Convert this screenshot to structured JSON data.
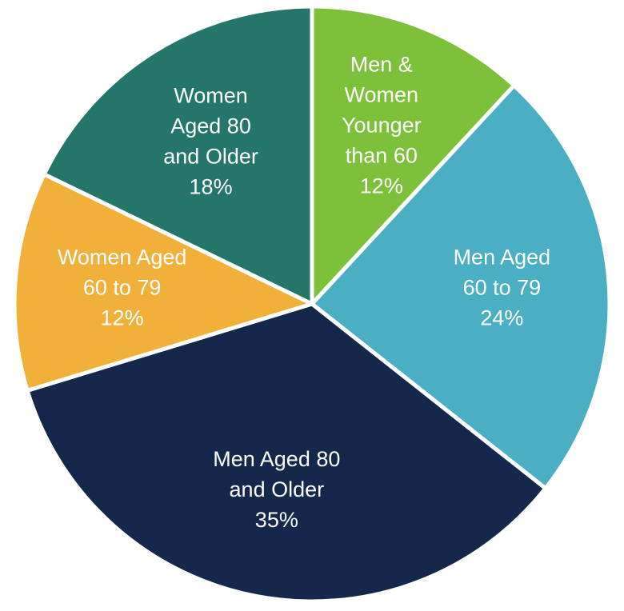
{
  "chart_data": {
    "type": "pie",
    "categories": [
      [
        "Men &",
        "Women",
        "Younger",
        "than 60"
      ],
      [
        "Men Aged",
        "60 to 79"
      ],
      [
        "Men Aged 80",
        "and Older"
      ],
      [
        "Women Aged",
        "60 to 79"
      ],
      [
        "Women",
        "Aged 80",
        "and Older"
      ]
    ],
    "values": [
      12,
      24,
      35,
      12,
      18
    ],
    "value_labels": [
      "12%",
      "24%",
      "35%",
      "12%",
      "18%"
    ],
    "colors": [
      "#7dc03a",
      "#4bafc4",
      "#13284b",
      "#f0b03a",
      "#24766b"
    ]
  }
}
